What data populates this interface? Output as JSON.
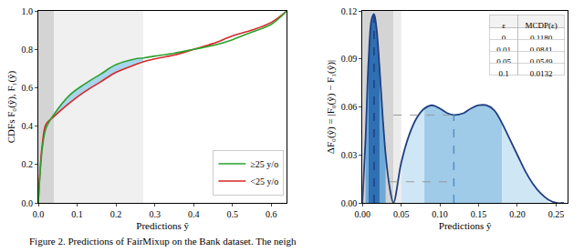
{
  "chart_data": [
    {
      "type": "line",
      "xlabel": "Predictions ŷ",
      "ylabel": "CDFs F₀(ŷ), F₁(ŷ)",
      "x": [
        0,
        0.01,
        0.02,
        0.04,
        0.08,
        0.12,
        0.16,
        0.2,
        0.25,
        0.27,
        0.3,
        0.35,
        0.4,
        0.45,
        0.5,
        0.55,
        0.6,
        0.64
      ],
      "series": [
        {
          "name": "<25 y/o",
          "color": "#d62728",
          "values": [
            0,
            0.3,
            0.41,
            0.45,
            0.52,
            0.58,
            0.63,
            0.68,
            0.72,
            0.735,
            0.75,
            0.77,
            0.8,
            0.83,
            0.87,
            0.9,
            0.94,
            1.0
          ]
        },
        {
          "name": "≥25 y/o",
          "color": "#2ca02c",
          "values": [
            0,
            0.28,
            0.39,
            0.46,
            0.56,
            0.62,
            0.67,
            0.72,
            0.75,
            0.755,
            0.765,
            0.78,
            0.8,
            0.82,
            0.85,
            0.89,
            0.93,
            1.0
          ]
        }
      ],
      "xlim": [
        0,
        0.64
      ],
      "xticks": [
        {
          "value": 0,
          "label": "0.0"
        },
        0.1,
        0.2,
        0.3,
        0.4,
        0.5,
        0.6
      ],
      "ylim": [
        0,
        1
      ],
      "yticks": [
        {
          "value": 0,
          "label": "0.0"
        },
        0.2,
        0.4,
        0.6,
        0.8,
        {
          "value": 1,
          "label": "1.0"
        }
      ],
      "legend": "lower right",
      "grid": false,
      "fill_between": {
        "x0": 0.04,
        "x1": 0.27,
        "color": "#a8d4ec"
      },
      "background_bands": [
        {
          "x0": 0,
          "x1": 0.04,
          "color": "#d4d4d4"
        },
        {
          "x0": 0.04,
          "x1": 0.27,
          "color": "#f0f0f0"
        }
      ]
    },
    {
      "type": "line",
      "xlabel": "Predictions ŷ",
      "ylabel": "ΔF₀(ŷ) = |F₀(ŷ) − F₁(ŷ)|",
      "x": [
        0,
        0.004,
        0.008,
        0.012,
        0.015,
        0.018,
        0.022,
        0.026,
        0.03,
        0.035,
        0.04,
        0.05,
        0.06,
        0.07,
        0.08,
        0.09,
        0.1,
        0.11,
        0.118,
        0.13,
        0.14,
        0.15,
        0.16,
        0.17,
        0.18,
        0.19,
        0.2,
        0.21,
        0.22,
        0.23,
        0.24,
        0.25,
        0.26
      ],
      "series": [
        {
          "color": "#1f3f80",
          "values": [
            0,
            0.04,
            0.09,
            0.115,
            0.118,
            0.11,
            0.085,
            0.055,
            0.03,
            0.01,
            0,
            0.025,
            0.042,
            0.053,
            0.059,
            0.061,
            0.059,
            0.056,
            0.055,
            0.056,
            0.059,
            0.061,
            0.061,
            0.058,
            0.05,
            0.04,
            0.03,
            0.02,
            0.012,
            0.006,
            0.002,
            0,
            0
          ]
        }
      ],
      "xlim": [
        0,
        0.265
      ],
      "xticks": [
        {
          "value": 0,
          "label": "0.00"
        },
        0.05,
        {
          "value": 0.1,
          "label": "0.10"
        },
        0.15,
        {
          "value": 0.2,
          "label": "0.20"
        },
        0.25
      ],
      "ylim": [
        0,
        0.12
      ],
      "yticks": [
        {
          "value": 0,
          "label": "0.00"
        },
        0.03,
        0.06,
        0.09,
        0.12
      ],
      "grid": false,
      "background_bands": [
        {
          "x0": 0,
          "x1": 0.04,
          "color": "#d4d4d4"
        },
        {
          "x0": 0.04,
          "x1": 0.05,
          "color": "#ececec"
        }
      ],
      "shaded_regions": [
        {
          "x0": 0.05,
          "x1": 0.24,
          "color": "#cfe6f5"
        },
        {
          "x0": 0.08,
          "x1": 0.18,
          "color": "#9fcbe8"
        },
        {
          "x0": 0.004,
          "x1": 0.03,
          "color": "#6fa9d8"
        },
        {
          "x0": 0.008,
          "x1": 0.022,
          "color": "#2f6fb3"
        }
      ],
      "vlines": [
        {
          "x": 0.015,
          "y": 0.118,
          "color": "#1f3f80"
        },
        {
          "x": 0.118,
          "y": 0.055,
          "color": "#4f8fc8"
        }
      ],
      "hlines": [
        {
          "y": 0.0549,
          "x0": 0.04,
          "x1": 0.118
        },
        {
          "y": 0.0132,
          "x0": 0.035,
          "x1": 0.118
        }
      ],
      "table": {
        "header": [
          "ε",
          "MCDP(ε)"
        ],
        "rows": [
          [
            "0",
            "0.1180"
          ],
          [
            "0.01",
            "0.0841"
          ],
          [
            "0.05",
            "0.0549"
          ],
          [
            "0.1",
            "0.0132"
          ]
        ]
      }
    }
  ],
  "caption": "Figure 2. Predictions of FairMixup on the Bank dataset. The neigh"
}
